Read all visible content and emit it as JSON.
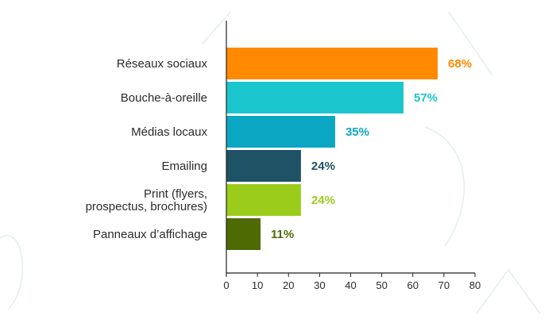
{
  "chart_data": {
    "type": "bar",
    "orientation": "horizontal",
    "title": "",
    "xlabel": "",
    "ylabel": "",
    "xlim": [
      0,
      80
    ],
    "x_ticks": [
      0,
      10,
      20,
      30,
      40,
      50,
      60,
      70,
      80
    ],
    "grid": false,
    "legend": "none",
    "categories": [
      [
        "Réseaux sociaux"
      ],
      [
        "Bouche-à-oreille"
      ],
      [
        "Médias locaux"
      ],
      [
        "Emailing"
      ],
      [
        "Print (flyers,",
        "prospectus, brochures)"
      ],
      [
        "Panneaux d’affichage"
      ]
    ],
    "values": [
      68,
      57,
      35,
      24,
      24,
      11
    ],
    "value_labels": [
      "68%",
      "57%",
      "35%",
      "24%",
      "24%",
      "11%"
    ],
    "colors": [
      "#ff8a00",
      "#1cc6ce",
      "#0aa6c2",
      "#1e5265",
      "#9ccc1b",
      "#4e6b03"
    ]
  }
}
